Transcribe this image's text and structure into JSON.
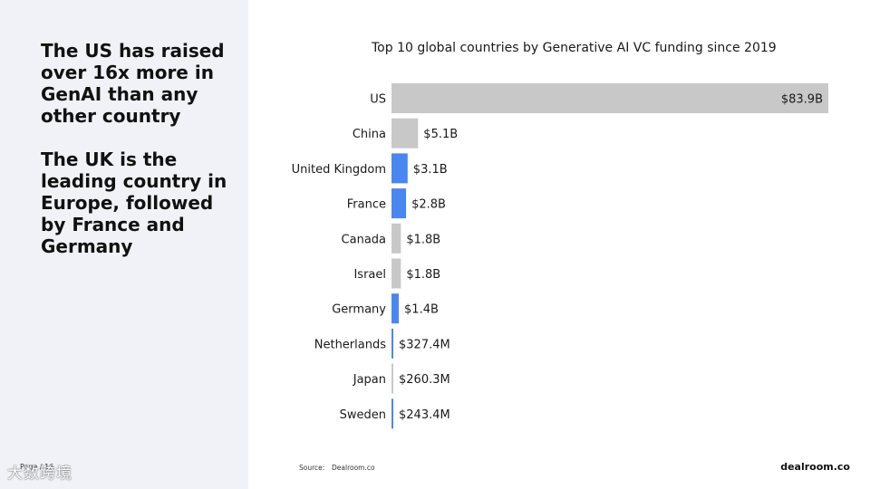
{
  "left_panel": {
    "headline_1": "The US has raised over 16x more in GenAI than any other country",
    "headline_2": "The UK is the leading country in Europe, followed by France and Germany",
    "page_label": "Page / 16",
    "watermark": "大数跨境"
  },
  "footer": {
    "source_label": "Source:",
    "source_value": "Dealroom.co",
    "brand": "dealroom.co"
  },
  "colors": {
    "gray_bar": "#c8c8c8",
    "europe_bar": "#4a86f0",
    "panel_bg": "#f1f2f7"
  },
  "chart_data": {
    "type": "bar",
    "orientation": "horizontal",
    "title": "Top 10 global countries by Generative AI VC funding since 2019",
    "unit": "USD",
    "categories": [
      "US",
      "China",
      "United Kingdom",
      "France",
      "Canada",
      "Israel",
      "Germany",
      "Netherlands",
      "Japan",
      "Sweden"
    ],
    "values": [
      83.9,
      5.1,
      3.1,
      2.8,
      1.8,
      1.8,
      1.4,
      0.3274,
      0.2603,
      0.2434
    ],
    "value_labels": [
      "$83.9B",
      "$5.1B",
      "$3.1B",
      "$2.8B",
      "$1.8B",
      "$1.8B",
      "$1.4B",
      "$327.4M",
      "$260.3M",
      "$243.4M"
    ],
    "highlight": [
      false,
      false,
      true,
      true,
      false,
      false,
      true,
      true,
      false,
      true
    ],
    "xlim": [
      0,
      83.9
    ],
    "grid": false,
    "legend": "none"
  }
}
